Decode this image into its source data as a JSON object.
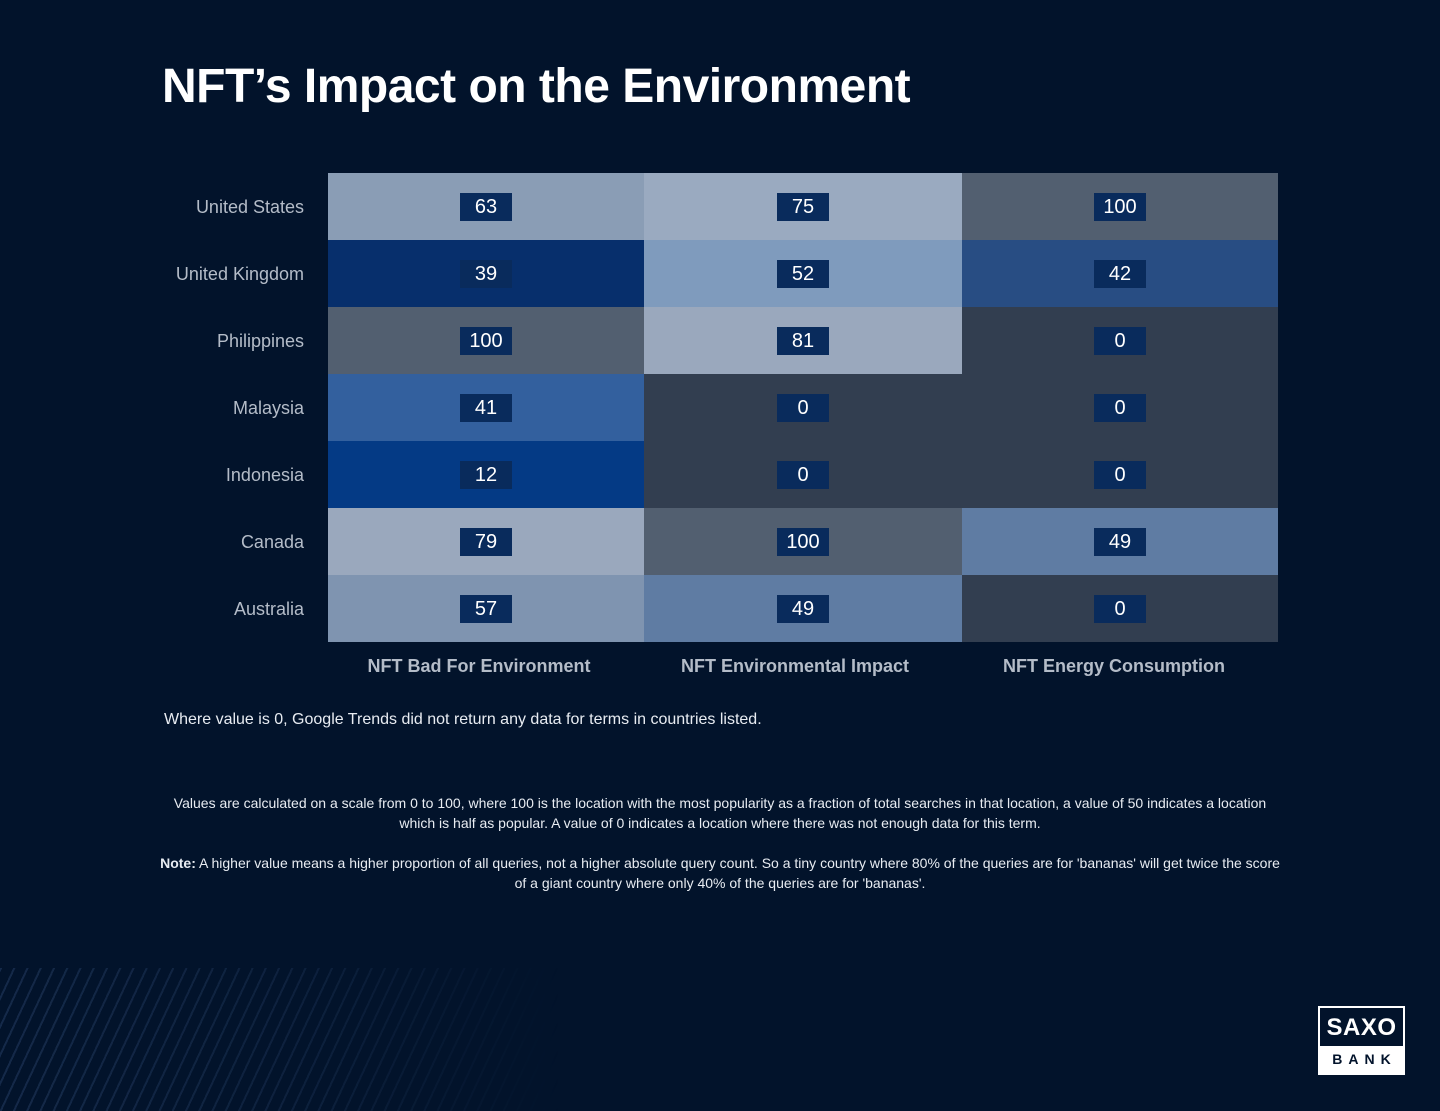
{
  "title": "NFT’s Impact on the Environment",
  "colors": {
    "background": "#02132b",
    "value_box": "#092b5c"
  },
  "chart_data": {
    "type": "heatmap",
    "rows": [
      "United States",
      "United Kingdom",
      "Philippines",
      "Malaysia",
      "Indonesia",
      "Canada",
      "Australia"
    ],
    "columns": [
      "NFT Bad For Environment",
      "NFT Environmental Impact",
      "NFT Energy Consumption"
    ],
    "values": [
      [
        63,
        75,
        100
      ],
      [
        39,
        52,
        42
      ],
      [
        100,
        81,
        0
      ],
      [
        41,
        0,
        0
      ],
      [
        12,
        0,
        0
      ],
      [
        79,
        100,
        49
      ],
      [
        57,
        49,
        0
      ]
    ],
    "cell_colors": [
      [
        "#8a9db5",
        "#9aaac0",
        "#525f70"
      ],
      [
        "#072f6c",
        "#7f9bbd",
        "#284d83"
      ],
      [
        "#525f70",
        "#9aa8bd",
        "#323e50"
      ],
      [
        "#33609e",
        "#323e50",
        "#323e50"
      ],
      [
        "#043a85",
        "#323e50",
        "#323e50"
      ],
      [
        "#9aa8bd",
        "#525f70",
        "#5f7ca3"
      ],
      [
        "#7f94b0",
        "#5f7ca3",
        "#323e50"
      ]
    ],
    "value_range": [
      0,
      100
    ]
  },
  "notes": {
    "zero_note": "Where value is 0, Google Trends did not return any data for terms in countries listed.",
    "scale_note": "Values are calculated on a scale from 0 to 100, where 100 is the location with the most popularity as a fraction of total searches in that location, a value of 50 indicates a location which is half as popular. A value of 0 indicates a location where there was not enough data for this term.",
    "note_label": "Note:",
    "note_text": "A higher value means a higher proportion of all queries, not a higher absolute query count. So a tiny country where 80% of the queries are for 'bananas' will get twice the score of a giant country where only 40% of the queries are for 'bananas'."
  },
  "logo": {
    "top": "SAXO",
    "bottom": "BANK"
  }
}
